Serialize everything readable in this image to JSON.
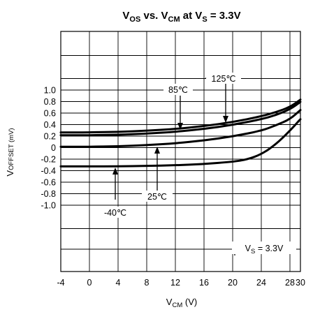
{
  "chart_data": {
    "type": "line",
    "title": {
      "part1": "V",
      "sub1": "OS",
      "part2": " vs. V",
      "sub2": "CM",
      "part3": " at V",
      "sub3": "S",
      "part4": " = 3.3V"
    },
    "xlabel": {
      "main": "V",
      "sub": "CM",
      "rest": " (V)"
    },
    "ylabel": {
      "main": "V",
      "rest": "OFFSET (mV)"
    },
    "x_ticks": [
      "-4",
      "0",
      "4",
      "8",
      "12",
      "16",
      "20",
      "24",
      "28",
      "30"
    ],
    "x_tick_values": [
      -4,
      0,
      4,
      8,
      12,
      16,
      20,
      24,
      28,
      30
    ],
    "y_ticks": [
      "1.0",
      "0.8",
      "0.6",
      "0.4",
      "0.2",
      "0",
      "-0.2",
      "-0.4",
      "-0.6",
      "-0.8",
      "-1.0"
    ],
    "y_tick_values": [
      1.0,
      0.8,
      0.6,
      0.4,
      0.2,
      0,
      -0.2,
      -0.4,
      -0.6,
      -0.8,
      -1.0
    ],
    "xlim": [
      -4,
      30
    ],
    "grid": true,
    "annotations": {
      "t85": "85℃",
      "t125": "125℃",
      "t25": "25℃",
      "tm40": "-40℃",
      "vs_main": "V",
      "vs_sub": "S",
      "vs_rest": " = 3.3V"
    },
    "series": [
      {
        "name": "125℃",
        "x": [
          -4,
          0,
          4,
          8,
          12,
          16,
          20,
          24,
          26,
          28,
          30
        ],
        "y": [
          0.27,
          0.27,
          0.28,
          0.3,
          0.33,
          0.38,
          0.45,
          0.55,
          0.62,
          0.71,
          0.84
        ]
      },
      {
        "name": "85℃",
        "x": [
          -4,
          0,
          4,
          8,
          12,
          16,
          20,
          24,
          26,
          28,
          30
        ],
        "y": [
          0.22,
          0.22,
          0.23,
          0.25,
          0.28,
          0.33,
          0.4,
          0.5,
          0.57,
          0.67,
          0.8
        ]
      },
      {
        "name": "25℃",
        "x": [
          -4,
          0,
          4,
          8,
          12,
          16,
          20,
          24,
          26,
          28,
          30
        ],
        "y": [
          0.02,
          0.02,
          0.03,
          0.05,
          0.08,
          0.13,
          0.2,
          0.3,
          0.39,
          0.5,
          0.66
        ]
      },
      {
        "name": "-40℃",
        "x": [
          -4,
          0,
          4,
          8,
          12,
          16,
          20,
          22,
          24,
          26,
          28,
          30
        ],
        "y": [
          -0.32,
          -0.32,
          -0.32,
          -0.31,
          -0.3,
          -0.28,
          -0.24,
          -0.2,
          -0.11,
          0.06,
          0.3,
          0.5
        ]
      }
    ]
  }
}
